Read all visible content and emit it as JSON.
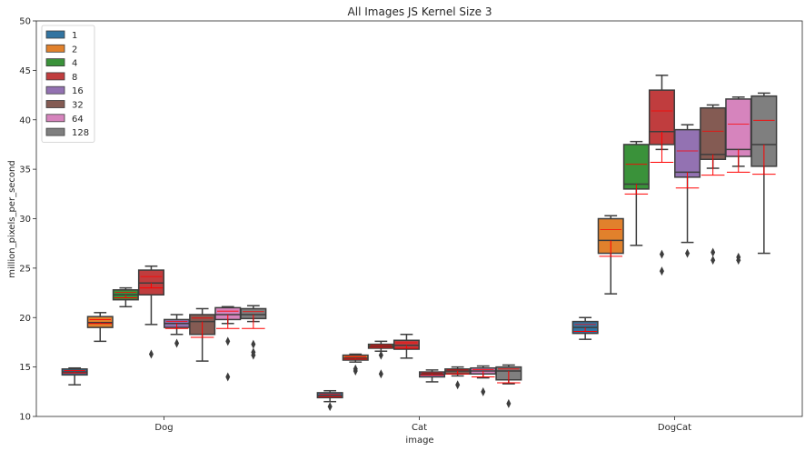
{
  "chart_data": {
    "type": "box",
    "title": "All Images JS Kernel Size 3",
    "xlabel": "image",
    "ylabel": "million_pixels_per_second",
    "ylim": [
      10,
      50
    ],
    "yticks": [
      10,
      15,
      20,
      25,
      30,
      35,
      40,
      45,
      50
    ],
    "categories": [
      "Dog",
      "Cat",
      "DogCat"
    ],
    "legend_position": "top-left",
    "grid": false,
    "mean_line_color": "#ff0000",
    "series": [
      {
        "name": "1",
        "color": "#3274a1",
        "boxes": [
          {
            "q1": 14.2,
            "median": 14.5,
            "q3": 14.8,
            "whislo": 13.2,
            "whishi": 14.9,
            "mean": 14.4,
            "fliers": []
          },
          {
            "q1": 11.9,
            "median": 12.1,
            "q3": 12.4,
            "whislo": 11.5,
            "whishi": 12.6,
            "mean": 12.0,
            "fliers": [
              11.0
            ]
          },
          {
            "q1": 18.4,
            "median": 19.0,
            "q3": 19.6,
            "whislo": 17.8,
            "whishi": 20.0,
            "mean": 18.6,
            "fliers": []
          }
        ]
      },
      {
        "name": "2",
        "color": "#e1812c",
        "boxes": [
          {
            "q1": 19.0,
            "median": 19.5,
            "q3": 20.1,
            "whislo": 17.6,
            "whishi": 20.5,
            "mean": 19.4,
            "fliers": []
          },
          {
            "q1": 15.7,
            "median": 15.9,
            "q3": 16.2,
            "whislo": 15.5,
            "whishi": 16.3,
            "mean": 15.8,
            "fliers": [
              14.8,
              14.6
            ]
          },
          {
            "q1": 26.5,
            "median": 27.8,
            "q3": 30.0,
            "whislo": 22.4,
            "whishi": 30.3,
            "mean": 26.2,
            "fliers": []
          }
        ]
      },
      {
        "name": "4",
        "color": "#3a923a",
        "boxes": [
          {
            "q1": 21.8,
            "median": 22.3,
            "q3": 22.8,
            "whislo": 21.1,
            "whishi": 23.0,
            "mean": 22.0,
            "fliers": []
          },
          {
            "q1": 16.9,
            "median": 17.1,
            "q3": 17.3,
            "whislo": 16.6,
            "whishi": 17.6,
            "mean": 17.0,
            "fliers": [
              16.2,
              14.3
            ]
          },
          {
            "q1": 33.0,
            "median": 33.5,
            "q3": 37.5,
            "whislo": 27.3,
            "whishi": 37.8,
            "mean": 32.5,
            "fliers": []
          }
        ]
      },
      {
        "name": "8",
        "color": "#c03d3e",
        "boxes": [
          {
            "q1": 22.3,
            "median": 23.5,
            "q3": 24.8,
            "whislo": 19.3,
            "whishi": 25.2,
            "mean": 23.0,
            "fliers": [
              16.3
            ]
          },
          {
            "q1": 16.8,
            "median": 17.2,
            "q3": 17.7,
            "whislo": 15.9,
            "whishi": 18.3,
            "mean": 16.9,
            "fliers": []
          },
          {
            "q1": 37.5,
            "median": 38.8,
            "q3": 43.0,
            "whislo": 37.0,
            "whishi": 44.5,
            "mean": 35.7,
            "fliers": [
              26.4,
              24.7
            ]
          }
        ]
      },
      {
        "name": "16",
        "color": "#9372b2",
        "boxes": [
          {
            "q1": 19.0,
            "median": 19.4,
            "q3": 19.8,
            "whislo": 18.3,
            "whishi": 20.3,
            "mean": 18.9,
            "fliers": [
              17.4
            ]
          },
          {
            "q1": 14.0,
            "median": 14.3,
            "q3": 14.5,
            "whislo": 13.5,
            "whishi": 14.7,
            "mean": 14.2,
            "fliers": []
          },
          {
            "q1": 34.2,
            "median": 34.7,
            "q3": 39.0,
            "whislo": 27.6,
            "whishi": 39.5,
            "mean": 33.1,
            "fliers": [
              26.5
            ]
          }
        ]
      },
      {
        "name": "32",
        "color": "#845b53",
        "boxes": [
          {
            "q1": 18.3,
            "median": 19.6,
            "q3": 20.3,
            "whislo": 15.6,
            "whishi": 20.9,
            "mean": 18.0,
            "fliers": []
          },
          {
            "q1": 14.3,
            "median": 14.6,
            "q3": 14.8,
            "whislo": 14.1,
            "whishi": 15.0,
            "mean": 14.3,
            "fliers": [
              13.2
            ]
          },
          {
            "q1": 36.0,
            "median": 36.5,
            "q3": 41.2,
            "whislo": 35.1,
            "whishi": 41.5,
            "mean": 34.4,
            "fliers": [
              26.6,
              25.8
            ]
          }
        ]
      },
      {
        "name": "64",
        "color": "#d684bd",
        "boxes": [
          {
            "q1": 19.8,
            "median": 20.3,
            "q3": 21.0,
            "whislo": 19.4,
            "whishi": 21.1,
            "mean": 18.9,
            "fliers": [
              17.6,
              14.0
            ]
          },
          {
            "q1": 14.3,
            "median": 14.6,
            "q3": 14.9,
            "whislo": 13.9,
            "whishi": 15.1,
            "mean": 14.0,
            "fliers": [
              12.5
            ]
          },
          {
            "q1": 36.3,
            "median": 37.0,
            "q3": 42.1,
            "whislo": 35.3,
            "whishi": 42.3,
            "mean": 34.7,
            "fliers": [
              26.1,
              25.8
            ]
          }
        ]
      },
      {
        "name": "128",
        "color": "#7f7f7f",
        "boxes": [
          {
            "q1": 19.9,
            "median": 20.3,
            "q3": 20.9,
            "whislo": 19.6,
            "whishi": 21.2,
            "mean": 18.9,
            "fliers": [
              17.3,
              16.5,
              16.2
            ]
          },
          {
            "q1": 13.7,
            "median": 14.6,
            "q3": 15.0,
            "whislo": 13.3,
            "whishi": 15.2,
            "mean": 13.4,
            "fliers": [
              11.3
            ]
          },
          {
            "q1": 35.3,
            "median": 37.5,
            "q3": 42.4,
            "whislo": 26.5,
            "whishi": 42.7,
            "mean": 34.5,
            "fliers": []
          }
        ]
      }
    ]
  }
}
